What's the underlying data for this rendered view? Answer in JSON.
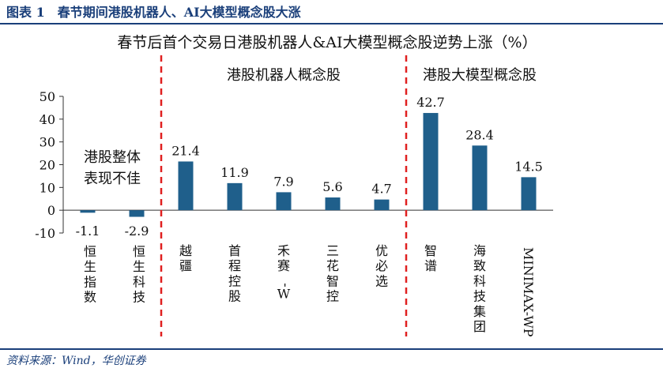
{
  "figure_title": "图表 1　春节期间港股机器人、AI大模型概念股大涨",
  "source": "资料来源：Wind，华创证券",
  "annotation": [
    "港股整体",
    "表现不佳"
  ],
  "chart_data": {
    "type": "bar",
    "title": "春节后首个交易日港股机器人&AI大模型概念股逆势上涨（%）",
    "categories": [
      "恒生指数",
      "恒生科技",
      "越疆",
      "首程控股",
      "禾赛-W",
      "三花智控",
      "优必选",
      "智谱",
      "海致科技集团",
      "MINIMAX-WP"
    ],
    "values": [
      -1.1,
      -2.9,
      21.4,
      11.9,
      7.9,
      5.6,
      4.7,
      42.7,
      28.4,
      14.5
    ],
    "value_labels": [
      "-1.1",
      "-2.9",
      "21.4",
      "11.9",
      "7.9",
      "5.6",
      "4.7",
      "42.7",
      "28.4",
      "14.5"
    ],
    "groups": [
      {
        "label": "港股机器人概念股",
        "start": 2,
        "end": 6
      },
      {
        "label": "港股大模型概念股",
        "start": 7,
        "end": 9
      }
    ],
    "ylim": [
      -10,
      50
    ],
    "yticks": [
      -10,
      0,
      10,
      20,
      30,
      40,
      50
    ],
    "bar_color": "#1f5f8b",
    "divider_color": "#e02020",
    "grid": false
  }
}
